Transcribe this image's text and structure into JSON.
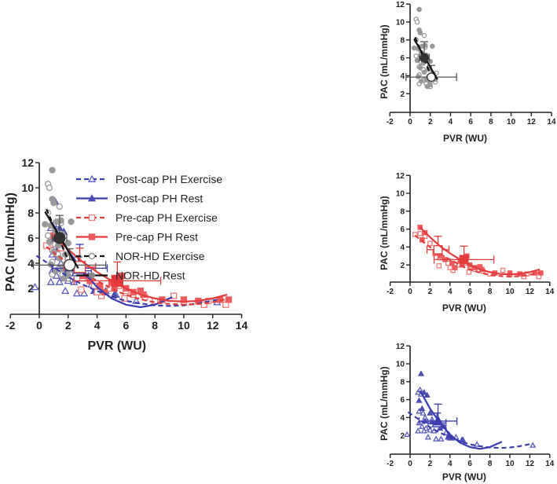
{
  "colors": {
    "post_cap": "#4a4cb0",
    "pre_cap": "#e23b3b",
    "pre_cap_open": "#ef7b7b",
    "nor_hd": "#999999",
    "nor_line": "#111111"
  },
  "legend": [
    {
      "key": "post_ex",
      "label": "Post-cap PH Exercise"
    },
    {
      "key": "post_rest",
      "label": "Post-cap PH Rest"
    },
    {
      "key": "pre_ex",
      "label": "Pre-cap PH Exercise"
    },
    {
      "key": "pre_rest",
      "label": "Pre-cap PH Rest"
    },
    {
      "key": "nor_ex",
      "label": "NOR-HD Exercise"
    },
    {
      "key": "nor_rest",
      "label": "NOR-HD Rest"
    }
  ],
  "chart_data": [
    {
      "panel": "main",
      "type": "scatter",
      "xlabel": "PVR (WU)",
      "ylabel": "PAC (mL/mmHg)",
      "xlim": [
        -2,
        14
      ],
      "ylim": [
        0,
        12
      ],
      "xticks": [
        -2,
        0,
        2,
        4,
        6,
        8,
        10,
        12,
        14
      ],
      "yticks": [
        2,
        4,
        6,
        8,
        10,
        12
      ],
      "legend_position": "right",
      "series_keys": [
        "post_ex",
        "post_rest",
        "pre_ex",
        "pre_rest",
        "nor_ex",
        "nor_rest"
      ]
    },
    {
      "panel": "top-right",
      "type": "scatter",
      "xlabel": "PVR (WU)",
      "ylabel": "PAC (mL/mmHg)",
      "xlim": [
        -2,
        14
      ],
      "ylim": [
        0,
        12
      ],
      "xticks": [
        -2,
        0,
        2,
        4,
        6,
        8,
        10,
        12,
        14
      ],
      "yticks": [
        2,
        4,
        6,
        8,
        10,
        12
      ],
      "series_keys": [
        "nor_ex",
        "nor_rest"
      ]
    },
    {
      "panel": "middle-right",
      "type": "scatter",
      "xlabel": "PVR (WU)",
      "ylabel": "PAC (mL/mmHg)",
      "xlim": [
        -2,
        14
      ],
      "ylim": [
        0,
        12
      ],
      "xticks": [
        -2,
        0,
        2,
        4,
        6,
        8,
        10,
        12,
        14
      ],
      "yticks": [
        2,
        4,
        6,
        8,
        10,
        12
      ],
      "series_keys": [
        "pre_ex",
        "pre_rest"
      ]
    },
    {
      "panel": "bottom-right",
      "type": "scatter",
      "xlabel": "PVR (WU)",
      "ylabel": "PAC (mL/mmHg)",
      "xlim": [
        -2,
        14
      ],
      "ylim": [
        0,
        12
      ],
      "xticks": [
        -2,
        0,
        2,
        4,
        6,
        8,
        10,
        12,
        14
      ],
      "yticks": [
        2,
        4,
        6,
        8,
        10,
        12
      ],
      "series_keys": [
        "post_ex",
        "post_rest"
      ]
    }
  ],
  "series": {
    "nor_rest": {
      "name": "NOR-HD Rest",
      "marker": "circle",
      "filled": true,
      "color": "#999999",
      "line_color": "#111111",
      "dashed": false,
      "points": [
        [
          0.9,
          11.4
        ],
        [
          0.9,
          9.1
        ],
        [
          1.0,
          8.8
        ],
        [
          0.4,
          7.1
        ],
        [
          0.8,
          7.0
        ],
        [
          1.2,
          7.3
        ],
        [
          1.5,
          7.4
        ],
        [
          2.2,
          7.3
        ],
        [
          1.1,
          6.6
        ],
        [
          1.6,
          6.3
        ],
        [
          0.7,
          5.7
        ],
        [
          1.3,
          5.4
        ],
        [
          2.0,
          5.6
        ],
        [
          1.0,
          4.9
        ],
        [
          1.8,
          4.7
        ],
        [
          1.4,
          4.4
        ],
        [
          2.3,
          4.2
        ],
        [
          0.8,
          3.9
        ],
        [
          1.6,
          3.6
        ],
        [
          1.9,
          3.4
        ],
        [
          2.5,
          3.6
        ],
        [
          1.1,
          3.4
        ],
        [
          2.0,
          3.0
        ],
        [
          1.7,
          2.8
        ]
      ],
      "mean": {
        "x": 1.4,
        "y": 6.0,
        "xerr": 0.5,
        "yerr": 1.8
      },
      "fit": [
        [
          0.4,
          8.1
        ],
        [
          2.7,
          3.6
        ]
      ]
    },
    "nor_ex": {
      "name": "NOR-HD Exercise",
      "marker": "circle",
      "filled": false,
      "color": "#999999",
      "line_color": "#111111",
      "dashed": true,
      "points": [
        [
          0.6,
          10.3
        ],
        [
          0.7,
          10.0
        ],
        [
          0.6,
          8.0
        ],
        [
          1.4,
          8.5
        ],
        [
          1.5,
          7.2
        ],
        [
          0.6,
          6.2
        ],
        [
          1.1,
          5.5
        ],
        [
          0.9,
          5.0
        ],
        [
          1.3,
          4.7
        ],
        [
          0.9,
          4.1
        ],
        [
          1.8,
          3.9
        ],
        [
          1.3,
          3.5
        ],
        [
          2.6,
          4.3
        ],
        [
          2.5,
          3.3
        ],
        [
          0.9,
          3.1
        ],
        [
          2.0,
          2.8
        ],
        [
          1.6,
          3.1
        ],
        [
          2.2,
          3.5
        ]
      ],
      "mean": {
        "x": 2.1,
        "y": 3.85,
        "xerr": 2.5,
        "yerr": 1.3
      },
      "fit": [
        [
          0.5,
          8.3
        ],
        [
          2.3,
          3.4
        ]
      ]
    },
    "pre_rest": {
      "name": "Pre-cap PH Rest",
      "marker": "square",
      "filled": true,
      "color": "#ef5a5a",
      "line_color": "#e23b3b",
      "dashed": false,
      "points": [
        [
          1.0,
          6.2
        ],
        [
          1.5,
          5.6
        ],
        [
          1.2,
          4.8
        ],
        [
          2.5,
          3.3
        ],
        [
          3.0,
          3.0
        ],
        [
          4.2,
          2.2
        ],
        [
          5.0,
          2.5
        ],
        [
          5.7,
          3.0
        ],
        [
          5.2,
          2.0
        ],
        [
          6.0,
          2.0
        ],
        [
          6.5,
          1.7
        ],
        [
          7.0,
          1.8
        ],
        [
          7.2,
          1.5
        ],
        [
          8.5,
          1.1
        ],
        [
          10.0,
          1.1
        ],
        [
          11.0,
          1.0
        ],
        [
          12.5,
          1.1
        ],
        [
          13.1,
          1.1
        ],
        [
          3.5,
          2.6
        ],
        [
          4.5,
          1.7
        ]
      ],
      "mean": {
        "x": 5.4,
        "y": 2.6,
        "xerr": 3.0,
        "yerr": 1.5
      },
      "fit": [
        [
          1,
          6.2
        ],
        [
          2,
          5.1
        ],
        [
          3,
          4.1
        ],
        [
          4,
          3.3
        ],
        [
          5,
          2.6
        ],
        [
          6,
          2.0
        ],
        [
          7,
          1.5
        ],
        [
          8,
          1.2
        ],
        [
          9,
          1.0
        ],
        [
          10,
          0.95
        ],
        [
          11,
          1.0
        ],
        [
          12,
          1.2
        ],
        [
          13,
          1.5
        ]
      ]
    },
    "pre_ex": {
      "name": "Pre-cap PH Exercise",
      "marker": "square",
      "filled": false,
      "color": "#ef7b7b",
      "line_color": "#e23b3b",
      "dashed": true,
      "points": [
        [
          0.5,
          5.4
        ],
        [
          1.0,
          5.5
        ],
        [
          1.5,
          5.2
        ],
        [
          2.0,
          4.4
        ],
        [
          2.5,
          3.5
        ],
        [
          3.0,
          2.8
        ],
        [
          2.9,
          1.9
        ],
        [
          3.8,
          2.2
        ],
        [
          4.3,
          1.4
        ],
        [
          4.9,
          2.0
        ],
        [
          5.5,
          2.2
        ],
        [
          6.0,
          1.8
        ],
        [
          6.5,
          1.5
        ],
        [
          7.3,
          1.3
        ],
        [
          8.0,
          1.0
        ],
        [
          9.3,
          1.4
        ],
        [
          10.0,
          0.9
        ],
        [
          11.4,
          0.7
        ],
        [
          11.7,
          1.0
        ],
        [
          12.9,
          0.7
        ],
        [
          4.0,
          1.7
        ],
        [
          5.9,
          1.2
        ]
      ],
      "mean": {
        "x": 2.8,
        "y": 3.7,
        "xerr": 1.1,
        "yerr": 1.5
      },
      "fit": [
        [
          0.5,
          5.3
        ],
        [
          1.5,
          4.4
        ],
        [
          2.5,
          3.6
        ],
        [
          3.5,
          2.9
        ],
        [
          4.5,
          2.3
        ],
        [
          5.5,
          1.7
        ],
        [
          6.5,
          1.3
        ],
        [
          7.5,
          1.0
        ],
        [
          8.5,
          0.8
        ],
        [
          10,
          0.7
        ],
        [
          11,
          0.75
        ],
        [
          12,
          0.9
        ],
        [
          13,
          1.15
        ]
      ]
    },
    "post_rest": {
      "name": "Post-cap PH Rest",
      "marker": "triangle",
      "filled": true,
      "color": "#4a4cb0",
      "line_color": "#3a3cb0",
      "dashed": false,
      "points": [
        [
          1.1,
          8.9
        ],
        [
          1.4,
          6.8
        ],
        [
          1.7,
          6.5
        ],
        [
          0.9,
          5.9
        ],
        [
          1.2,
          5.0
        ],
        [
          2.0,
          4.5
        ],
        [
          1.5,
          3.6
        ],
        [
          2.2,
          3.5
        ],
        [
          2.7,
          3.2
        ],
        [
          3.0,
          2.8
        ],
        [
          3.4,
          3.0
        ],
        [
          3.9,
          2.1
        ],
        [
          4.2,
          1.7
        ],
        [
          3.8,
          1.8
        ],
        [
          5.2,
          1.5
        ]
      ],
      "mean": {
        "x": 2.8,
        "y": 3.6,
        "xerr": 1.9,
        "yerr": 1.9
      },
      "fit": [
        [
          1,
          7
        ],
        [
          2,
          5
        ],
        [
          3,
          3.4
        ],
        [
          4,
          2.1
        ],
        [
          5,
          1.2
        ],
        [
          6,
          0.7
        ],
        [
          7,
          0.5
        ],
        [
          8,
          0.7
        ],
        [
          9.2,
          1.3
        ]
      ]
    },
    "post_ex": {
      "name": "Post-cap PH Exercise",
      "marker": "triangle",
      "filled": false,
      "color": "#5a5cc0",
      "line_color": "#3a3cb0",
      "dashed": true,
      "points": [
        [
          -0.3,
          2.1
        ],
        [
          0.8,
          6.8
        ],
        [
          1.0,
          7.1
        ],
        [
          1.1,
          6.6
        ],
        [
          0.9,
          4.7
        ],
        [
          1.3,
          4.5
        ],
        [
          1.5,
          4.0
        ],
        [
          0.9,
          3.4
        ],
        [
          1.2,
          3.0
        ],
        [
          1.6,
          2.8
        ],
        [
          2.0,
          2.6
        ],
        [
          0.8,
          2.5
        ],
        [
          1.4,
          2.5
        ],
        [
          2.4,
          2.5
        ],
        [
          1.8,
          1.8
        ],
        [
          2.6,
          1.6
        ],
        [
          3.1,
          1.6
        ],
        [
          3.6,
          2.3
        ],
        [
          4.0,
          1.7
        ],
        [
          4.6,
          1.8
        ],
        [
          5.3,
          1.5
        ],
        [
          6.7,
          1.0
        ],
        [
          12.3,
          0.9
        ],
        [
          2.2,
          3.8
        ],
        [
          3.0,
          3.3
        ]
      ],
      "mean": {
        "x": 2.7,
        "y": 3.4,
        "xerr": 0.9,
        "yerr": 1.1
      },
      "fit": [
        [
          -0.2,
          4.6
        ],
        [
          1,
          3.7
        ],
        [
          2,
          2.9
        ],
        [
          3,
          2.3
        ],
        [
          4,
          1.8
        ],
        [
          5,
          1.35
        ],
        [
          6,
          1.0
        ],
        [
          7,
          0.8
        ],
        [
          8,
          0.65
        ],
        [
          9,
          0.6
        ],
        [
          10,
          0.65
        ],
        [
          11,
          0.8
        ],
        [
          12.3,
          1.1
        ]
      ]
    }
  }
}
